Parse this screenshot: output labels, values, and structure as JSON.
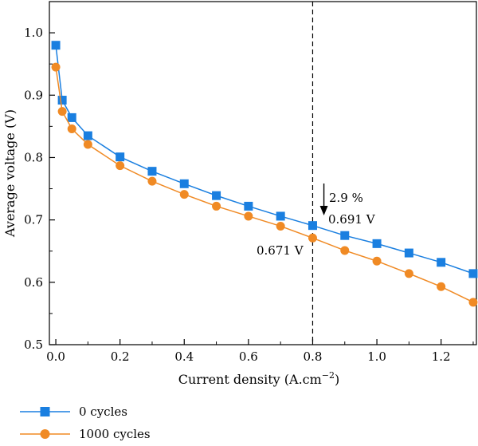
{
  "chart_data": {
    "type": "line",
    "xlabel": "Current density (A.cm",
    "xlabel_sup": "−2",
    "xlabel_close": ")",
    "ylabel": "Average voltage (V)",
    "xlim": [
      -0.02,
      1.31
    ],
    "ylim": [
      0.5,
      1.05
    ],
    "xticks": [
      0.0,
      0.2,
      0.4,
      0.6,
      0.8,
      1.0,
      1.2
    ],
    "xtick_labels": [
      "0.0",
      "0.2",
      "0.4",
      "0.6",
      "0.8",
      "1.0",
      "1.2"
    ],
    "yticks": [
      0.5,
      0.6,
      0.7,
      0.8,
      0.9,
      1.0
    ],
    "ytick_labels": [
      "0.5",
      "0.6",
      "0.7",
      "0.8",
      "0.9",
      "1.0"
    ],
    "grid": false,
    "legend_placement": "bottom-left, below axes",
    "series": [
      {
        "name": "0 cycles",
        "color": "#1a7fe0",
        "marker": "square",
        "x": [
          0.0,
          0.02,
          0.05,
          0.1,
          0.2,
          0.3,
          0.4,
          0.5,
          0.6,
          0.7,
          0.8,
          0.9,
          1.0,
          1.1,
          1.2,
          1.3
        ],
        "y": [
          0.98,
          0.892,
          0.864,
          0.835,
          0.801,
          0.778,
          0.758,
          0.739,
          0.722,
          0.706,
          0.691,
          0.675,
          0.662,
          0.647,
          0.632,
          0.614
        ]
      },
      {
        "name": "1000 cycles",
        "color": "#f08a24",
        "marker": "circle",
        "x": [
          0.0,
          0.02,
          0.05,
          0.1,
          0.2,
          0.3,
          0.4,
          0.5,
          0.6,
          0.7,
          0.8,
          0.9,
          1.0,
          1.1,
          1.2,
          1.3
        ],
        "y": [
          0.945,
          0.874,
          0.846,
          0.821,
          0.787,
          0.762,
          0.741,
          0.722,
          0.706,
          0.69,
          0.671,
          0.651,
          0.634,
          0.614,
          0.593,
          0.568
        ]
      }
    ],
    "reference_line": {
      "x": 0.8,
      "style": "dashed"
    },
    "annotations": [
      {
        "text": "2.9 %",
        "x": 0.835,
        "y": 0.74
      },
      {
        "text": "0.691 V",
        "x": 0.83,
        "y": 0.7
      },
      {
        "text": "0.671 V",
        "x": 0.79,
        "y": 0.672
      }
    ]
  }
}
